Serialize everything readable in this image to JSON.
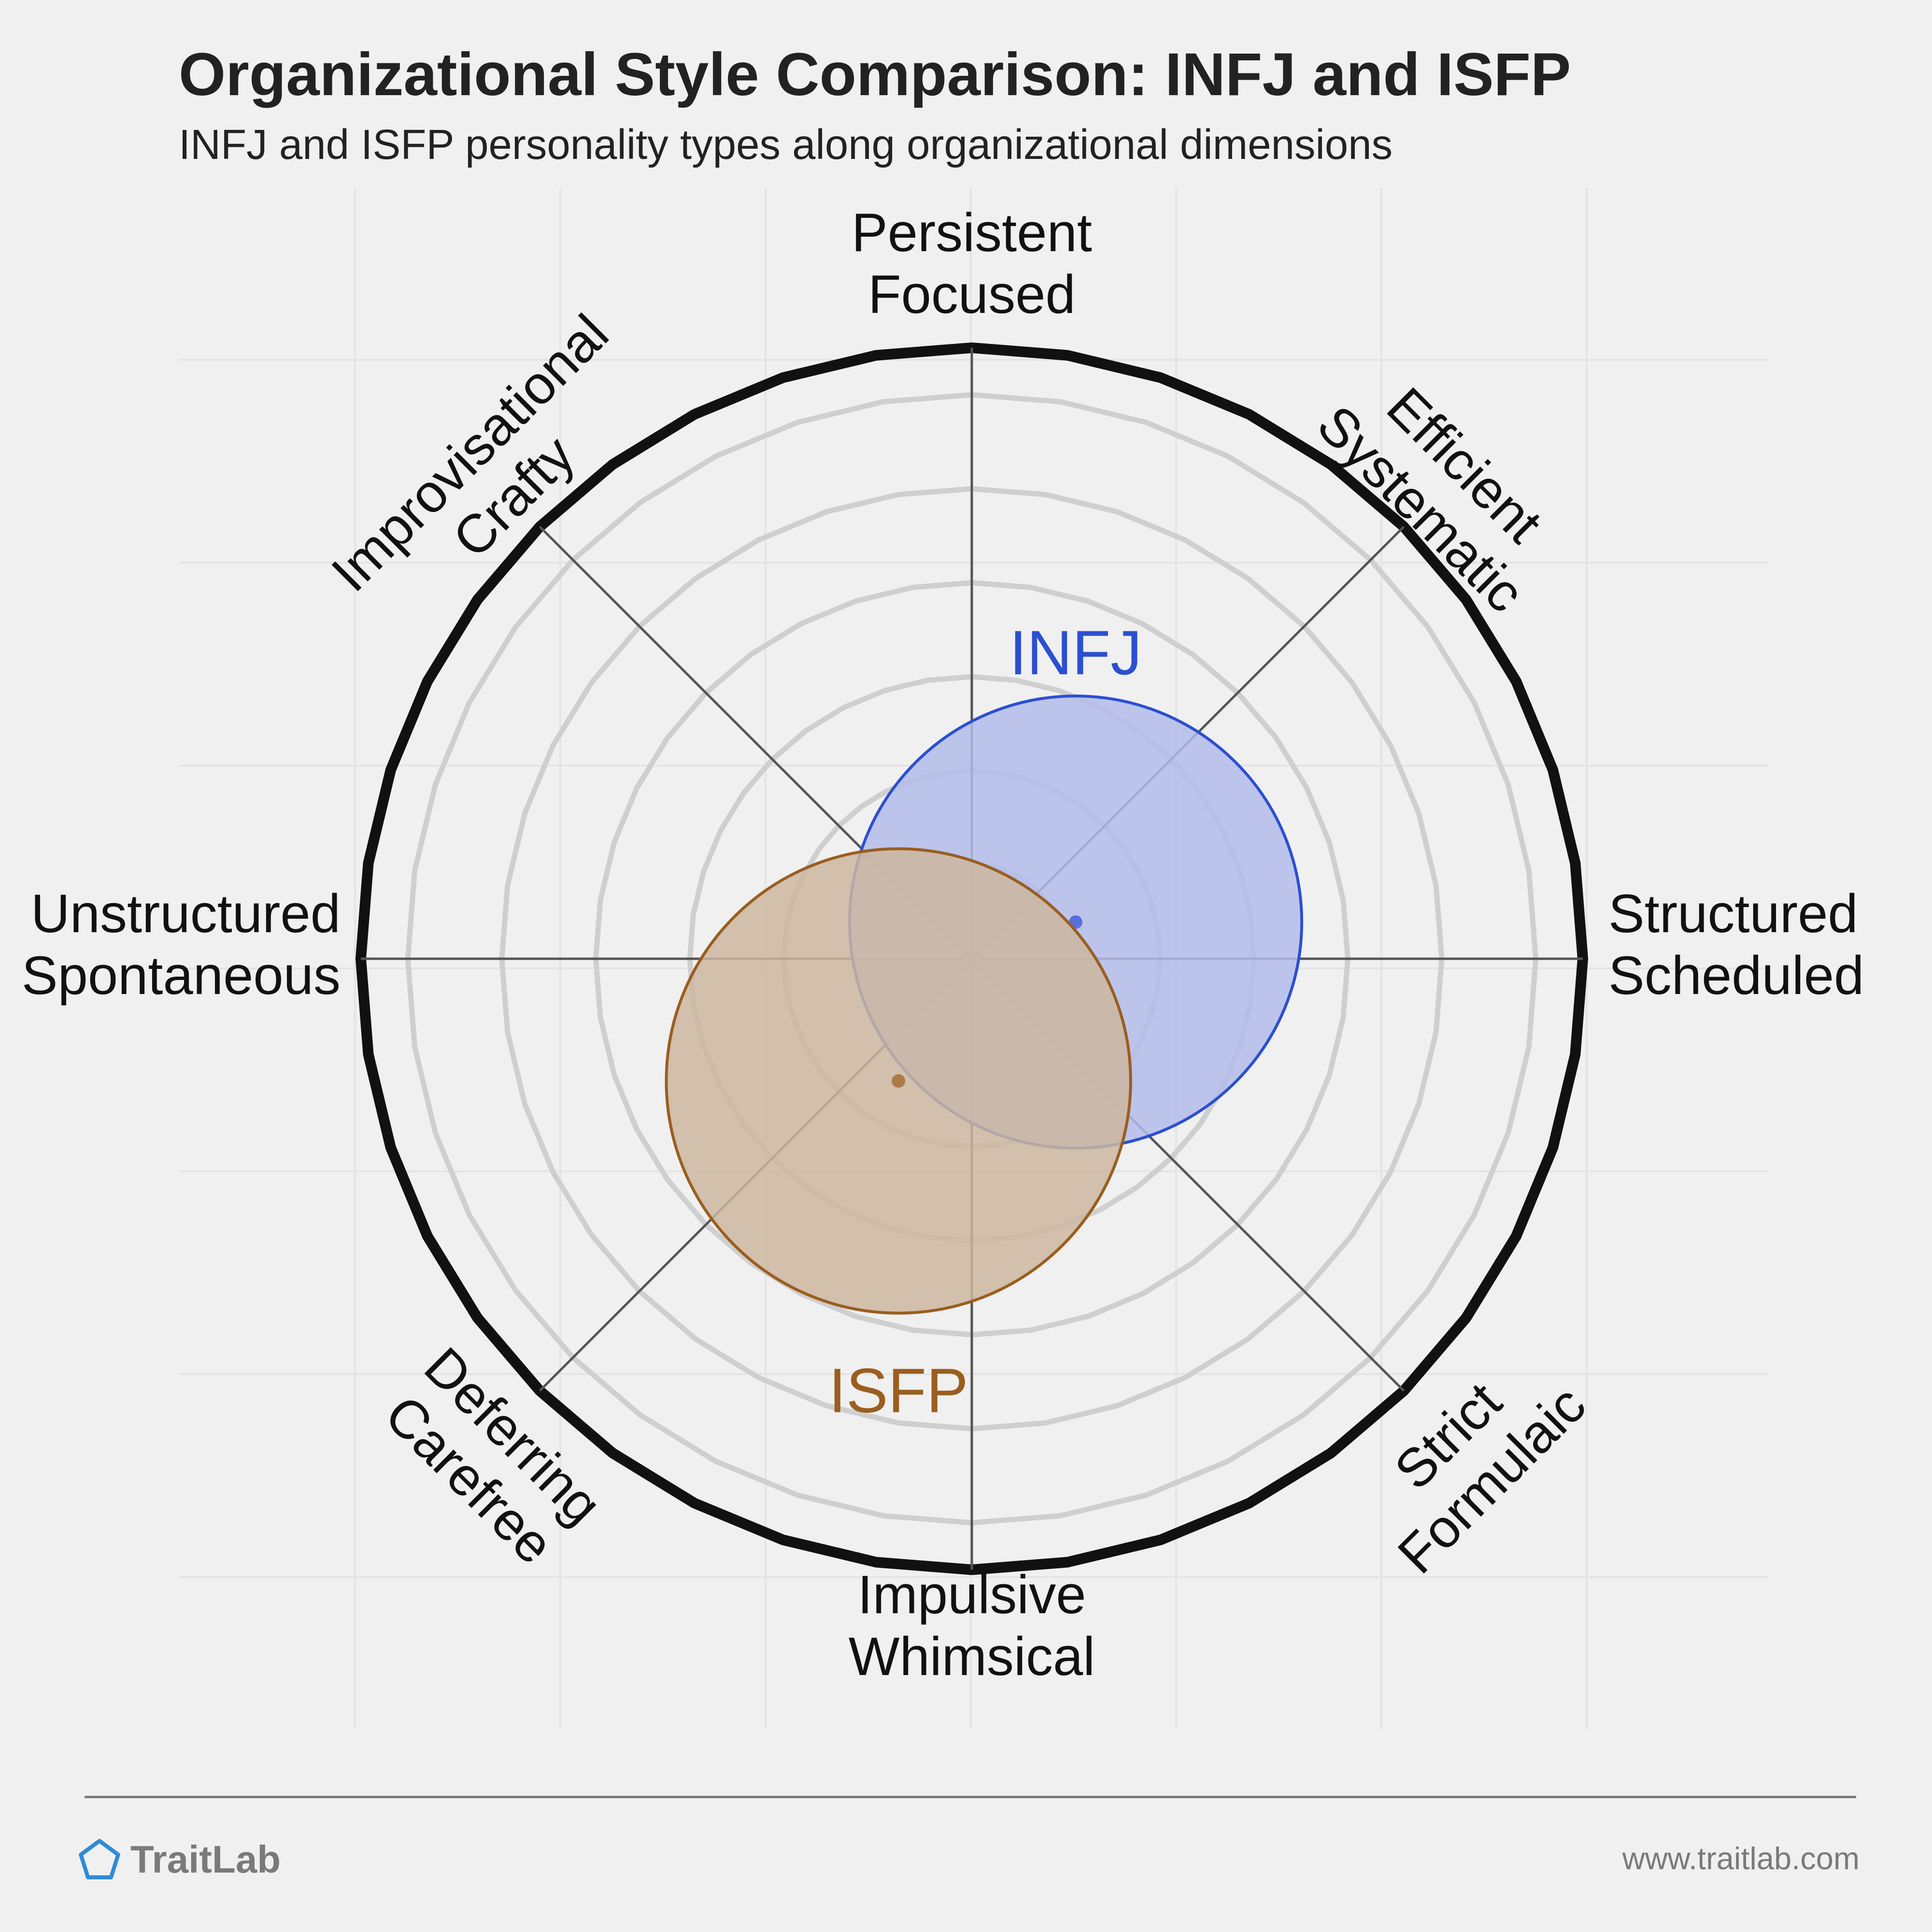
{
  "header": {
    "title": "Organizational Style Comparison: INFJ and ISFP",
    "subtitle": "INFJ and ISFP personality types along organizational dimensions"
  },
  "chart_data": {
    "type": "polar-scatter",
    "title": "Organizational Style Comparison: INFJ and ISFP",
    "subtitle": "INFJ and ISFP personality types along organizational dimensions",
    "axes": [
      {
        "direction": "N",
        "lines": [
          "Persistent",
          "Focused"
        ]
      },
      {
        "direction": "NE",
        "lines": [
          "Efficient",
          "Systematic"
        ]
      },
      {
        "direction": "E",
        "lines": [
          "Structured",
          "Scheduled"
        ]
      },
      {
        "direction": "SE",
        "lines": [
          "Strict",
          "Formulaic"
        ]
      },
      {
        "direction": "S",
        "lines": [
          "Impulsive",
          "Whimsical"
        ]
      },
      {
        "direction": "SW",
        "lines": [
          "Deferring",
          "Carefree"
        ]
      },
      {
        "direction": "W",
        "lines": [
          "Unstructured",
          "Spontaneous"
        ]
      },
      {
        "direction": "NW",
        "lines": [
          "Improvisational",
          "Crafty"
        ]
      }
    ],
    "rings": 6,
    "series": [
      {
        "name": "INFJ",
        "x": 17,
        "y": 6,
        "spread": 37,
        "color": "#2c4fd1",
        "fill": "#b3bcea"
      },
      {
        "name": "ISFP",
        "x": -12,
        "y": -20,
        "spread": 38,
        "color": "#9a5e1f",
        "fill": "#cdb6a0"
      }
    ],
    "range": 100
  },
  "footer": {
    "brand": "TraitLab",
    "website": "www.traitlab.com"
  },
  "colors": {
    "background": "#f0f0f0",
    "text": "#222222",
    "muted": "#7a7a7a",
    "brand_icon": "#2d8bd8"
  }
}
